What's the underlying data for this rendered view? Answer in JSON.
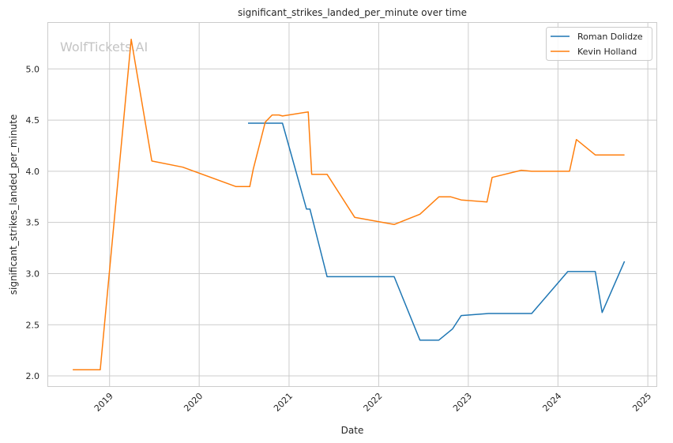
{
  "watermark": "WolfTickets.AI",
  "chart_data": {
    "type": "line",
    "title": "significant_strikes_landed_per_minute over time",
    "xlabel": "Date",
    "ylabel": "significant_strikes_landed_per_minute",
    "xlim": [
      "2018-04-26",
      "2025-02-05"
    ],
    "ylim": [
      1.9,
      5.45
    ],
    "x_ticks": [
      "2019",
      "2020",
      "2021",
      "2022",
      "2023",
      "2024",
      "2025"
    ],
    "y_ticks": [
      "2.0",
      "2.5",
      "3.0",
      "3.5",
      "4.0",
      "4.5",
      "5.0"
    ],
    "grid": true,
    "legend_position": "top-right",
    "series": [
      {
        "name": "Roman Dolidze",
        "color": "#1f77b4",
        "x": [
          "2020-07-18",
          "2020-12-05",
          "2021-03-13",
          "2021-03-27",
          "2021-06-05",
          "2022-03-05",
          "2022-06-18",
          "2022-09-03",
          "2022-10-29",
          "2022-12-03",
          "2023-03-25",
          "2023-09-16",
          "2024-02-10",
          "2024-06-01",
          "2024-06-29",
          "2024-09-28"
        ],
        "values": [
          4.47,
          4.47,
          3.63,
          3.63,
          2.97,
          2.97,
          2.35,
          2.35,
          2.46,
          2.59,
          2.61,
          2.61,
          3.02,
          3.02,
          2.62,
          3.12
        ]
      },
      {
        "name": "Kevin Holland",
        "color": "#ff7f0e",
        "x": [
          "2018-08-04",
          "2018-11-24",
          "2019-03-30",
          "2019-06-22",
          "2019-10-26",
          "2020-05-30",
          "2020-07-25",
          "2020-08-08",
          "2020-09-26",
          "2020-10-24",
          "2020-11-21",
          "2020-12-05",
          "2021-03-20",
          "2021-04-03",
          "2021-06-05",
          "2021-09-25",
          "2022-03-05",
          "2022-06-18",
          "2022-09-03",
          "2022-10-22",
          "2022-12-03",
          "2023-03-18",
          "2023-04-08",
          "2023-08-05",
          "2023-09-16",
          "2024-02-17",
          "2024-03-16",
          "2024-06-01",
          "2024-09-28"
        ],
        "values": [
          2.06,
          2.06,
          5.29,
          4.1,
          4.04,
          3.85,
          3.85,
          4.02,
          4.48,
          4.55,
          4.55,
          4.54,
          4.58,
          3.97,
          3.97,
          3.55,
          3.48,
          3.58,
          3.75,
          3.75,
          3.72,
          3.7,
          3.94,
          4.01,
          4.0,
          4.0,
          4.31,
          4.16,
          4.16
        ]
      }
    ]
  }
}
